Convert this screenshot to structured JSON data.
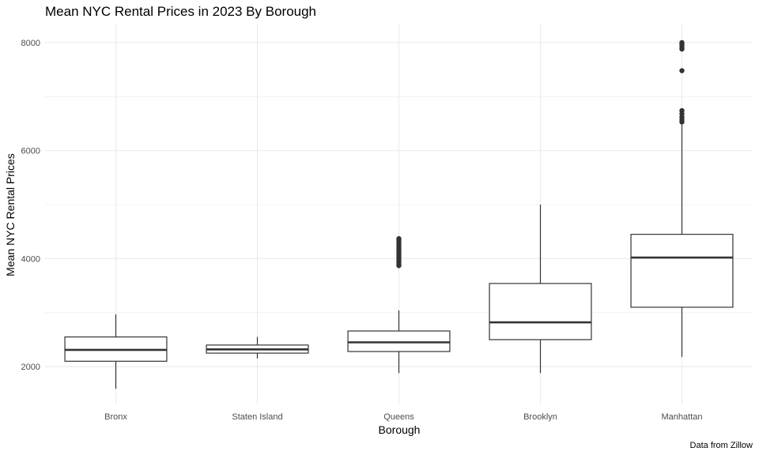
{
  "chart_data": {
    "type": "box",
    "title": "Mean NYC Rental Prices in 2023 By Borough",
    "xlabel": "Borough",
    "ylabel": "Mean NYC Rental Prices",
    "caption": "Data from Zillow",
    "ylim": [
      1300,
      8350
    ],
    "yticks": [
      2000,
      4000,
      6000,
      8000
    ],
    "y_minor_ticks": [
      3000,
      5000,
      7000
    ],
    "grid": true,
    "categories": [
      "Bronx",
      "Staten Island",
      "Queens",
      "Brooklyn",
      "Manhattan"
    ],
    "boxes": [
      {
        "category": "Bronx",
        "whisker_low": 1590,
        "q1": 2100,
        "median": 2310,
        "q3": 2550,
        "whisker_high": 2970,
        "outliers": []
      },
      {
        "category": "Staten Island",
        "whisker_low": 2150,
        "q1": 2250,
        "median": 2320,
        "q3": 2400,
        "whisker_high": 2550,
        "outliers": []
      },
      {
        "category": "Queens",
        "whisker_low": 1880,
        "q1": 2280,
        "median": 2450,
        "q3": 2660,
        "whisker_high": 3040,
        "outliers": [
          3870,
          3900,
          3940,
          3980,
          4020,
          4060,
          4100,
          4140,
          4180,
          4220,
          4260,
          4300,
          4340,
          4370
        ]
      },
      {
        "category": "Brooklyn",
        "whisker_low": 1880,
        "q1": 2500,
        "median": 2820,
        "q3": 3540,
        "whisker_high": 5000,
        "outliers": []
      },
      {
        "category": "Manhattan",
        "whisker_low": 2180,
        "q1": 3100,
        "median": 4020,
        "q3": 4450,
        "whisker_high": 6480,
        "outliers": [
          6530,
          6570,
          6620,
          6680,
          6740,
          7480,
          7880,
          7920,
          7950,
          7980,
          8000
        ]
      }
    ]
  }
}
